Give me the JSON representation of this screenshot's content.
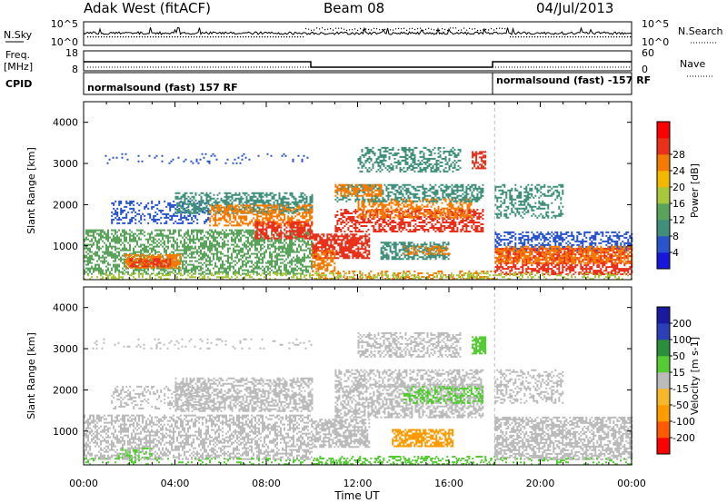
{
  "header": {
    "station": "Adak West (fitACF)",
    "beam": "Beam 08",
    "date": "04/Jul/2013"
  },
  "noise_panel": {
    "left_label": "N.Sky",
    "right_label": "N.Search",
    "left_ticks": [
      "10^5",
      "10^0"
    ],
    "right_ticks": [
      "10^5",
      "10^0"
    ]
  },
  "freq_panel": {
    "left_label_line1": "Freq.",
    "left_label_line2": "[MHz]",
    "right_label": "Nave",
    "left_ticks": [
      "18",
      "8"
    ],
    "right_ticks": [
      "60",
      "0"
    ]
  },
  "cpid_panel": {
    "label": "CPID",
    "segments": [
      {
        "text": "normalsound (fast) 157 RF",
        "start_hour": 0
      },
      {
        "text": "normalsound (fast) -157 RF",
        "start_hour": 18
      }
    ]
  },
  "chart_data": [
    {
      "type": "heatmap",
      "parameter": "Power",
      "ylabel": "Slant Range [km]",
      "yticks": [
        1000,
        2000,
        3000,
        4000
      ],
      "ylim": [
        180,
        4500
      ],
      "xlim_hours": [
        0,
        24
      ],
      "colorbar": {
        "label": "Power [dB]",
        "ticks": [
          "4",
          "8",
          "12",
          "16",
          "20",
          "24",
          "28"
        ],
        "colors": [
          "#1717d9",
          "#2a54c9",
          "#3f8f7a",
          "#5aa35a",
          "#a7c83a",
          "#f2b800",
          "#f57a00",
          "#e8301a",
          "#ff0000"
        ]
      },
      "bands": [
        {
          "x0": 0.3,
          "x1": 10,
          "r0": 3000,
          "r1": 3250,
          "color": "#2a54c9",
          "density": 0.1
        },
        {
          "x0": 1.2,
          "x1": 5.5,
          "r0": 1550,
          "r1": 2100,
          "color": "#2a54c9",
          "density": 0.35
        },
        {
          "x0": 0,
          "x1": 10,
          "r0": 300,
          "r1": 1400,
          "color": "#5aa35a",
          "density": 0.55
        },
        {
          "x0": 1.8,
          "x1": 4.2,
          "r0": 450,
          "r1": 800,
          "color": "#f57a00",
          "density": 0.75
        },
        {
          "x0": 2,
          "x1": 3.8,
          "r0": 500,
          "r1": 700,
          "color": "#e8301a",
          "density": 0.6
        },
        {
          "x0": 4,
          "x1": 10,
          "r0": 1800,
          "r1": 2300,
          "color": "#3f8f7a",
          "density": 0.55
        },
        {
          "x0": 5.5,
          "x1": 10,
          "r0": 1500,
          "r1": 2000,
          "color": "#f57a00",
          "density": 0.55
        },
        {
          "x0": 7.5,
          "x1": 10,
          "r0": 1200,
          "r1": 1600,
          "color": "#e8301a",
          "density": 0.6
        },
        {
          "x0": 10,
          "x1": 12.5,
          "r0": 700,
          "r1": 1300,
          "color": "#e8301a",
          "density": 0.75
        },
        {
          "x0": 10,
          "x1": 11,
          "r0": 400,
          "r1": 900,
          "color": "#f57a00",
          "density": 0.6
        },
        {
          "x0": 11,
          "x1": 17.5,
          "r0": 1350,
          "r1": 1900,
          "color": "#e8301a",
          "density": 0.55
        },
        {
          "x0": 12,
          "x1": 17,
          "r0": 1700,
          "r1": 2150,
          "color": "#f57a00",
          "density": 0.5
        },
        {
          "x0": 11,
          "x1": 17.5,
          "r0": 2100,
          "r1": 2500,
          "color": "#3f8f7a",
          "density": 0.5
        },
        {
          "x0": 11,
          "x1": 13,
          "r0": 2200,
          "r1": 2500,
          "color": "#f57a00",
          "density": 0.6
        },
        {
          "x0": 12,
          "x1": 16.5,
          "r0": 2800,
          "r1": 3400,
          "color": "#3f8f7a",
          "density": 0.45
        },
        {
          "x0": 13,
          "x1": 16,
          "r0": 700,
          "r1": 1100,
          "color": "#3f8f7a",
          "density": 0.6
        },
        {
          "x0": 14,
          "x1": 16,
          "r0": 800,
          "r1": 1000,
          "color": "#f57a00",
          "density": 0.45
        },
        {
          "x0": 17,
          "x1": 17.6,
          "r0": 2900,
          "r1": 3300,
          "color": "#e8301a",
          "density": 0.7
        },
        {
          "x0": 10,
          "x1": 18,
          "r0": 200,
          "r1": 400,
          "color": "#f57a00",
          "density": 0.35
        },
        {
          "x0": 18,
          "x1": 21,
          "r0": 1700,
          "r1": 2500,
          "color": "#3f8f7a",
          "density": 0.4
        },
        {
          "x0": 18,
          "x1": 24,
          "r0": 900,
          "r1": 1350,
          "color": "#2a54c9",
          "density": 0.5
        },
        {
          "x0": 18,
          "x1": 24,
          "r0": 300,
          "r1": 950,
          "color": "#e8301a",
          "density": 0.6
        },
        {
          "x0": 18,
          "x1": 24,
          "r0": 600,
          "r1": 1000,
          "color": "#f57a00",
          "density": 0.5
        },
        {
          "x0": 0,
          "x1": 24,
          "r0": 180,
          "r1": 350,
          "color": "#a7c83a",
          "density": 0.3
        }
      ]
    },
    {
      "type": "heatmap",
      "parameter": "Velocity",
      "ylabel": "Slant Range [km]",
      "yticks": [
        1000,
        2000,
        3000,
        4000
      ],
      "ylim": [
        180,
        4500
      ],
      "xlim_hours": [
        0,
        24
      ],
      "xticks": [
        "00:00",
        "04:00",
        "08:00",
        "12:00",
        "16:00",
        "20:00",
        "00:00"
      ],
      "xlabel": "Time UT",
      "colorbar": {
        "label": "Velocity [m s-1]",
        "ticks": [
          "-200",
          "-100",
          "-50",
          "-15",
          "15",
          "50",
          "100",
          "200"
        ],
        "colors": [
          "#ff0000",
          "#ff5a00",
          "#ff9a00",
          "#f5b82a",
          "#bbbbbb",
          "#55cc33",
          "#2a8f3a",
          "#2a3fb8",
          "#1a1aa0"
        ]
      },
      "bands": [
        {
          "x0": 0.3,
          "x1": 10,
          "r0": 3000,
          "r1": 3250,
          "color": "#bbbbbb",
          "density": 0.1
        },
        {
          "x0": 1.2,
          "x1": 5.5,
          "r0": 1550,
          "r1": 2100,
          "color": "#bbbbbb",
          "density": 0.35
        },
        {
          "x0": 0,
          "x1": 10,
          "r0": 300,
          "r1": 1400,
          "color": "#bbbbbb",
          "density": 0.5
        },
        {
          "x0": 1.5,
          "x1": 3,
          "r0": 350,
          "r1": 600,
          "color": "#55cc33",
          "density": 0.35
        },
        {
          "x0": 4,
          "x1": 10,
          "r0": 1500,
          "r1": 2300,
          "color": "#bbbbbb",
          "density": 0.55
        },
        {
          "x0": 10,
          "x1": 12.5,
          "r0": 600,
          "r1": 1300,
          "color": "#bbbbbb",
          "density": 0.7
        },
        {
          "x0": 11,
          "x1": 17.5,
          "r0": 1350,
          "r1": 2150,
          "color": "#bbbbbb",
          "density": 0.55
        },
        {
          "x0": 14,
          "x1": 17.5,
          "r0": 1700,
          "r1": 2100,
          "color": "#55cc33",
          "density": 0.45
        },
        {
          "x0": 11,
          "x1": 17.5,
          "r0": 2100,
          "r1": 2500,
          "color": "#bbbbbb",
          "density": 0.45
        },
        {
          "x0": 12,
          "x1": 16.5,
          "r0": 2800,
          "r1": 3400,
          "color": "#bbbbbb",
          "density": 0.45
        },
        {
          "x0": 13.5,
          "x1": 16.2,
          "r0": 650,
          "r1": 1050,
          "color": "#ff9a00",
          "density": 0.7
        },
        {
          "x0": 17,
          "x1": 17.6,
          "r0": 2900,
          "r1": 3300,
          "color": "#55cc33",
          "density": 0.7
        },
        {
          "x0": 10,
          "x1": 18,
          "r0": 200,
          "r1": 400,
          "color": "#55cc33",
          "density": 0.3
        },
        {
          "x0": 18,
          "x1": 21,
          "r0": 1700,
          "r1": 2500,
          "color": "#bbbbbb",
          "density": 0.4
        },
        {
          "x0": 18,
          "x1": 24,
          "r0": 300,
          "r1": 1350,
          "color": "#bbbbbb",
          "density": 0.6
        },
        {
          "x0": 0,
          "x1": 24,
          "r0": 180,
          "r1": 350,
          "color": "#55cc33",
          "density": 0.2
        }
      ]
    }
  ]
}
